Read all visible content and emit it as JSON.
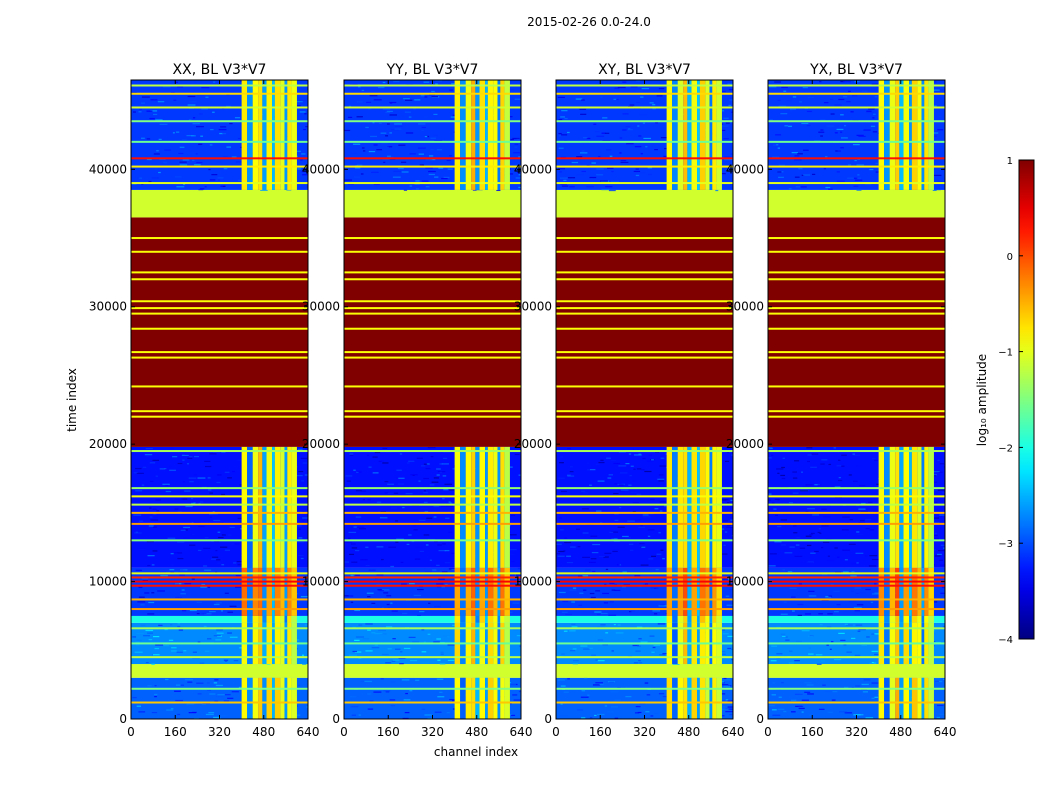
{
  "figure": {
    "suptitle": "2015-02-26 0.0-24.0",
    "xlabel": "channel index",
    "ylabel": "time index"
  },
  "chart_data": {
    "type": "heatmap",
    "title": "2015-02-26 0.0-24.0",
    "xlabel": "channel index",
    "ylabel": "time index",
    "xlim": [
      0,
      640
    ],
    "ylim": [
      0,
      46500
    ],
    "xticks": [
      "0",
      "160",
      "320",
      "480",
      "640"
    ],
    "xtick_values": [
      0,
      160,
      320,
      480,
      640
    ],
    "yticks": [
      "0",
      "10000",
      "20000",
      "30000",
      "40000"
    ],
    "ytick_values": [
      0,
      10000,
      20000,
      30000,
      40000
    ],
    "colormap": "jet",
    "colorbar": {
      "label": "log₁₀ amplitude",
      "range": [
        -4,
        1
      ],
      "ticks": [
        "1",
        "0",
        "−1",
        "−2",
        "−3",
        "−4"
      ],
      "tick_values": [
        1,
        0,
        -1,
        -2,
        -3,
        -4
      ],
      "stops": [
        "#00007f",
        "#0000ff",
        "#0080ff",
        "#00ffff",
        "#80ff80",
        "#ffff00",
        "#ff8000",
        "#ff0000",
        "#7f0000"
      ]
    },
    "panels": [
      {
        "title": "XX, BL V3*V7",
        "rfi_band": [
          400,
          600
        ]
      },
      {
        "title": "YY, BL V3*V7",
        "rfi_band": [
          400,
          600
        ]
      },
      {
        "title": "XY, BL V3*V7",
        "rfi_band": [
          400,
          600
        ]
      },
      {
        "title": "YX, BL V3*V7",
        "rfi_band": [
          400,
          600
        ]
      }
    ],
    "time_segments": [
      {
        "t0": 0,
        "t1": 3000,
        "log_amp": -2.9,
        "kind": "noisy"
      },
      {
        "t0": 3000,
        "t1": 4000,
        "log_amp": -1.1,
        "kind": "flagged"
      },
      {
        "t0": 4000,
        "t1": 7000,
        "log_amp": -2.7,
        "kind": "noisy"
      },
      {
        "t0": 7000,
        "t1": 7500,
        "log_amp": -2.0,
        "kind": "band"
      },
      {
        "t0": 7500,
        "t1": 11000,
        "log_amp": -3.1,
        "kind": "noisy"
      },
      {
        "t0": 11000,
        "t1": 19800,
        "log_amp": -3.3,
        "kind": "noisy"
      },
      {
        "t0": 19800,
        "t1": 36500,
        "log_amp": 1.0,
        "kind": "saturated"
      },
      {
        "t0": 36500,
        "t1": 38500,
        "log_amp": -1.1,
        "kind": "flagged"
      },
      {
        "t0": 38500,
        "t1": 46500,
        "log_amp": -3.1,
        "kind": "noisy"
      }
    ],
    "horizontal_lines": [
      {
        "t": 1200,
        "log_amp": -0.6
      },
      {
        "t": 2200,
        "log_amp": -1.5
      },
      {
        "t": 4500,
        "log_amp": -1.2
      },
      {
        "t": 5500,
        "log_amp": -1.6
      },
      {
        "t": 6600,
        "log_amp": -1.3
      },
      {
        "t": 8000,
        "log_amp": -0.4
      },
      {
        "t": 8700,
        "log_amp": -0.5
      },
      {
        "t": 9700,
        "log_amp": 0.3
      },
      {
        "t": 10000,
        "log_amp": 0.4
      },
      {
        "t": 10300,
        "log_amp": 0.2
      },
      {
        "t": 10600,
        "log_amp": -1.0
      },
      {
        "t": 13000,
        "log_amp": -1.5
      },
      {
        "t": 14200,
        "log_amp": -0.4
      },
      {
        "t": 15000,
        "log_amp": -0.5
      },
      {
        "t": 15600,
        "log_amp": -1.2
      },
      {
        "t": 16200,
        "log_amp": -0.9
      },
      {
        "t": 16800,
        "log_amp": -1.4
      },
      {
        "t": 19500,
        "log_amp": -1.3
      },
      {
        "t": 22000,
        "log_amp": -0.9
      },
      {
        "t": 22400,
        "log_amp": -0.9
      },
      {
        "t": 24200,
        "log_amp": -0.9
      },
      {
        "t": 26300,
        "log_amp": -0.9
      },
      {
        "t": 26700,
        "log_amp": -0.9
      },
      {
        "t": 28400,
        "log_amp": -0.9
      },
      {
        "t": 29500,
        "log_amp": -0.9
      },
      {
        "t": 29900,
        "log_amp": -0.9
      },
      {
        "t": 30400,
        "log_amp": -0.9
      },
      {
        "t": 32000,
        "log_amp": -0.9
      },
      {
        "t": 32500,
        "log_amp": -0.9
      },
      {
        "t": 34000,
        "log_amp": -0.9
      },
      {
        "t": 35000,
        "log_amp": -0.9
      },
      {
        "t": 39000,
        "log_amp": -1.0
      },
      {
        "t": 40200,
        "log_amp": -0.8
      },
      {
        "t": 40800,
        "log_amp": 0.3
      },
      {
        "t": 42000,
        "log_amp": -1.6
      },
      {
        "t": 43500,
        "log_amp": -1.5
      },
      {
        "t": 44500,
        "log_amp": -1.1
      },
      {
        "t": 45500,
        "log_amp": -0.7
      },
      {
        "t": 46100,
        "log_amp": -1.2
      }
    ],
    "channel_columns": [
      {
        "c0": 400,
        "c1": 420,
        "log_amp": -0.8
      },
      {
        "c0": 420,
        "c1": 440,
        "log_amp": -2.8
      },
      {
        "c0": 440,
        "c1": 460,
        "log_amp": -0.9
      },
      {
        "c0": 460,
        "c1": 475,
        "log_amp": -0.6
      },
      {
        "c0": 475,
        "c1": 490,
        "log_amp": -2.6
      },
      {
        "c0": 490,
        "c1": 510,
        "log_amp": -0.8
      },
      {
        "c0": 510,
        "c1": 520,
        "log_amp": -2.5
      },
      {
        "c0": 520,
        "c1": 540,
        "log_amp": -0.7
      },
      {
        "c0": 540,
        "c1": 555,
        "log_amp": -1.0
      },
      {
        "c0": 555,
        "c1": 565,
        "log_amp": -2.7
      },
      {
        "c0": 565,
        "c1": 580,
        "log_amp": -0.8
      },
      {
        "c0": 580,
        "c1": 600,
        "log_amp": -1.1
      }
    ]
  }
}
